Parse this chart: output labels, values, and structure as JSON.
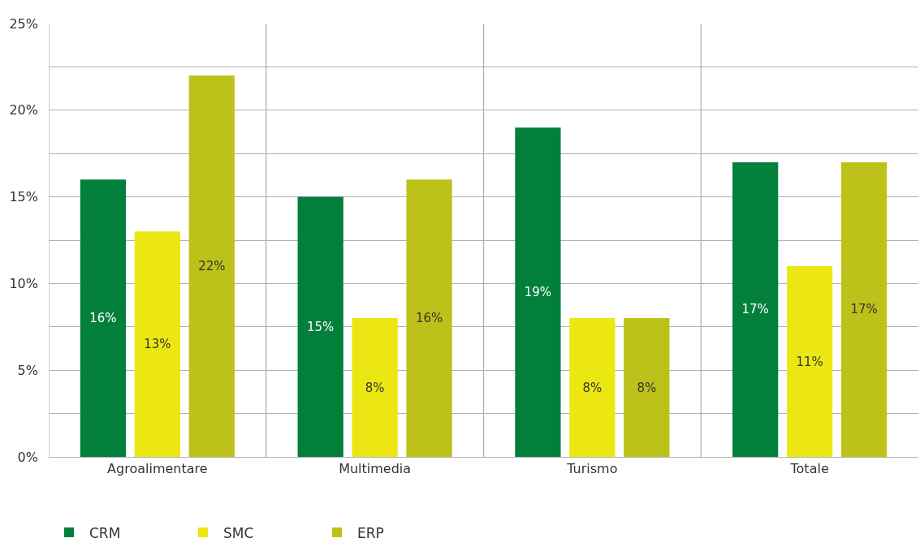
{
  "chart_data": {
    "type": "bar",
    "categories": [
      "Agroalimentare",
      "Multimedia",
      "Turismo",
      "Totale"
    ],
    "series": [
      {
        "name": "CRM",
        "color": "#037f3c",
        "values": [
          16,
          15,
          19,
          17
        ],
        "value_labels": [
          "16%",
          "15%",
          "19%",
          "17%"
        ]
      },
      {
        "name": "SMC",
        "color": "#ece712",
        "values": [
          13,
          8,
          8,
          11
        ],
        "value_labels": [
          "13%",
          "8%",
          "8%",
          "11%"
        ]
      },
      {
        "name": "ERP",
        "color": "#bdc21a",
        "values": [
          22,
          16,
          8,
          17
        ],
        "value_labels": [
          "22%",
          "16%",
          "8%",
          "17%"
        ]
      }
    ],
    "ylim": [
      0,
      25
    ],
    "yticks": [
      {
        "value": 0,
        "label": "0%"
      },
      {
        "value": 2.5,
        "label": null
      },
      {
        "value": 5,
        "label": "5%"
      },
      {
        "value": 7.5,
        "label": null
      },
      {
        "value": 10,
        "label": "10%"
      },
      {
        "value": 12.5,
        "label": null
      },
      {
        "value": 15,
        "label": "15%"
      },
      {
        "value": 17.5,
        "label": null
      },
      {
        "value": 20,
        "label": "20%"
      },
      {
        "value": 22.5,
        "label": null
      },
      {
        "value": 25,
        "label": "25%"
      }
    ],
    "grid": true,
    "legend": "bottom left"
  }
}
